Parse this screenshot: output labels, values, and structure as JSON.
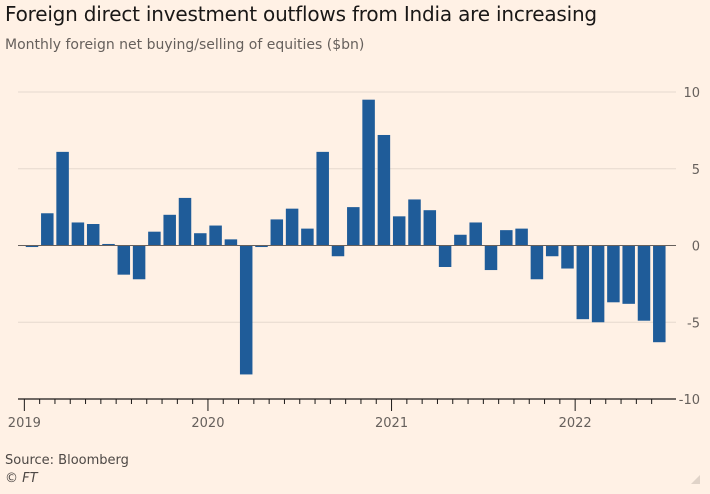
{
  "title": "Foreign direct investment outflows from India are increasing",
  "subtitle": "Monthly foreign net buying/selling of equities ($bn)",
  "source": "Source: Bloomberg",
  "credit": "© FT",
  "colors": {
    "bar": "#1F5C99",
    "background": "#FFF1E5",
    "grid": "#E6D9CE",
    "zero_line": "#66605C",
    "axis_text": "#66605C"
  },
  "chart_data": {
    "type": "bar",
    "title": "Foreign direct investment outflows from India are increasing",
    "subtitle": "Monthly foreign net buying/selling of equities ($bn)",
    "xlabel": "",
    "ylabel": "",
    "ylim": [
      -10,
      10
    ],
    "yticks": [
      10,
      5,
      0,
      -5,
      -10
    ],
    "x_tick_labels": [
      "2019",
      "2020",
      "2021",
      "2022"
    ],
    "grid": true,
    "y_axis_position": "right",
    "categories": [
      "Jan 2019",
      "Feb 2019",
      "Mar 2019",
      "Apr 2019",
      "May 2019",
      "Jun 2019",
      "Jul 2019",
      "Aug 2019",
      "Sep 2019",
      "Oct 2019",
      "Nov 2019",
      "Dec 2019",
      "Jan 2020",
      "Feb 2020",
      "Mar 2020",
      "Apr 2020",
      "May 2020",
      "Jun 2020",
      "Jul 2020",
      "Aug 2020",
      "Sep 2020",
      "Oct 2020",
      "Nov 2020",
      "Dec 2020",
      "Jan 2021",
      "Feb 2021",
      "Mar 2021",
      "Apr 2021",
      "May 2021",
      "Jun 2021",
      "Jul 2021",
      "Aug 2021",
      "Sep 2021",
      "Oct 2021",
      "Nov 2021",
      "Dec 2021",
      "Jan 2022",
      "Feb 2022",
      "Mar 2022",
      "Apr 2022",
      "May 2022",
      "Jun 2022"
    ],
    "values": [
      -0.1,
      2.1,
      6.1,
      1.5,
      1.4,
      0.1,
      -1.9,
      -2.2,
      0.9,
      2.0,
      3.1,
      0.8,
      1.3,
      0.4,
      -8.4,
      -0.1,
      1.7,
      2.4,
      1.1,
      6.1,
      -0.7,
      2.5,
      9.5,
      7.2,
      1.9,
      3.0,
      2.3,
      -1.4,
      0.7,
      1.5,
      -1.6,
      1.0,
      1.1,
      -2.2,
      -0.7,
      -1.5,
      -4.8,
      -5.0,
      -3.7,
      -3.8,
      -4.9,
      -6.3
    ]
  }
}
